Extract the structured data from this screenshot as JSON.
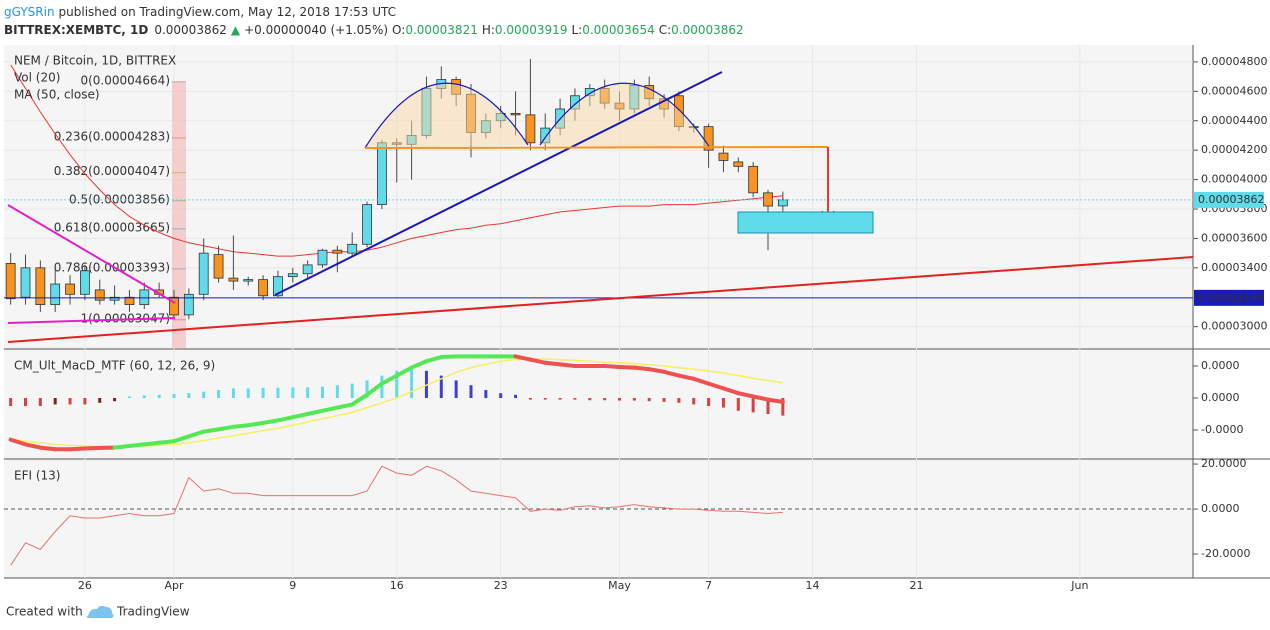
{
  "header": {
    "author": "gGYSRin",
    "published": "published on TradingView.com, May 12, 2018 17:53 UTC",
    "symbol": "BITTREX:XEMBTC, 1D",
    "price": "0.00003862",
    "change": "+0.00000040 (+1.05%)",
    "ohlc": [
      {
        "key": "O:",
        "value": "0.00003821"
      },
      {
        "key": "H:",
        "value": "0.00003919"
      },
      {
        "key": "L:",
        "value": "0.00003654"
      },
      {
        "key": "C:",
        "value": "0.00003862"
      }
    ]
  },
  "footer": {
    "created": "Created with",
    "brand": "TradingView"
  },
  "chart_data": {
    "type": "candlestick",
    "legend": [
      "NEM / Bitcoin, 1D, BITTREX",
      "Vol (20)",
      "MA (50, close)"
    ],
    "up_color": "#5fdbea",
    "down_color": "#f7931e",
    "x": [
      "Mar 21",
      "Mar 22",
      "Mar 23",
      "Mar 24",
      "Mar 25",
      "Mar 26",
      "Mar 27",
      "Mar 28",
      "Mar 29",
      "Mar 30",
      "Mar 31",
      "Apr 1",
      "Apr 2",
      "Apr 3",
      "Apr 4",
      "Apr 5",
      "Apr 6",
      "Apr 7",
      "Apr 8",
      "Apr 9",
      "Apr 10",
      "Apr 11",
      "Apr 12",
      "Apr 13",
      "Apr 14",
      "Apr 15",
      "Apr 16",
      "Apr 17",
      "Apr 18",
      "Apr 19",
      "Apr 20",
      "Apr 21",
      "Apr 22",
      "Apr 23",
      "Apr 24",
      "Apr 25",
      "Apr 26",
      "Apr 27",
      "Apr 28",
      "Apr 29",
      "Apr 30",
      "May 1",
      "May 2",
      "May 3",
      "May 4",
      "May 5",
      "May 6",
      "May 7",
      "May 8",
      "May 9",
      "May 10",
      "May 11",
      "May 12"
    ],
    "open": [
      3.43e-05,
      3.2e-05,
      3.4e-05,
      3.15e-05,
      3.29e-05,
      3.22e-05,
      3.25e-05,
      3.18e-05,
      3.2e-05,
      3.15e-05,
      3.25e-05,
      3.2e-05,
      3.08e-05,
      3.22e-05,
      3.49e-05,
      3.33e-05,
      3.31e-05,
      3.32e-05,
      3.21e-05,
      3.34e-05,
      3.36e-05,
      3.42e-05,
      3.52e-05,
      3.5e-05,
      3.56e-05,
      3.83e-05,
      4.25e-05,
      4.24e-05,
      4.3e-05,
      4.62e-05,
      4.68e-05,
      4.58e-05,
      4.32e-05,
      4.4e-05,
      4.45e-05,
      4.44e-05,
      4.25e-05,
      4.35e-05,
      4.48e-05,
      4.57e-05,
      4.62e-05,
      4.52e-05,
      4.48e-05,
      4.64e-05,
      4.55e-05,
      4.57e-05,
      4.36e-05,
      4.36e-05,
      4.18e-05,
      4.12e-05,
      4.09e-05,
      3.91e-05,
      3.821e-05
    ],
    "high": [
      3.5e-05,
      3.49e-05,
      3.45e-05,
      3.4e-05,
      3.35e-05,
      3.42e-05,
      3.32e-05,
      3.28e-05,
      3.25e-05,
      3.3e-05,
      3.3e-05,
      3.25e-05,
      3.26e-05,
      3.6e-05,
      3.55e-05,
      3.62e-05,
      3.34e-05,
      3.35e-05,
      3.38e-05,
      3.4e-05,
      3.45e-05,
      3.53e-05,
      3.55e-05,
      3.64e-05,
      3.85e-05,
      4.27e-05,
      4.28e-05,
      4.4e-05,
      4.7e-05,
      4.77e-05,
      4.7e-05,
      4.65e-05,
      4.45e-05,
      4.5e-05,
      4.6e-05,
      4.82e-05,
      4.45e-05,
      4.55e-05,
      4.62e-05,
      4.65e-05,
      4.68e-05,
      4.6e-05,
      4.68e-05,
      4.7e-05,
      4.58e-05,
      4.6e-05,
      4.38e-05,
      4.38e-05,
      4.23e-05,
      4.15e-05,
      4.12e-05,
      3.93e-05,
      3.919e-05
    ],
    "low": [
      3.15e-05,
      3.15e-05,
      3.1e-05,
      3.1e-05,
      3.15e-05,
      3.18e-05,
      3.15e-05,
      3.15e-05,
      3.1e-05,
      3.12e-05,
      3.2e-05,
      3.05e-05,
      3.05e-05,
      3.18e-05,
      3.3e-05,
      3.25e-05,
      3.28e-05,
      3.18e-05,
      3.2e-05,
      3.3e-05,
      3.32e-05,
      3.4e-05,
      3.37e-05,
      3.48e-05,
      3.54e-05,
      3.8e-05,
      3.98e-05,
      4e-05,
      4.28e-05,
      4.55e-05,
      4.5e-05,
      4.15e-05,
      4.28e-05,
      4.35e-05,
      4.3e-05,
      4.2e-05,
      4.2e-05,
      4.3e-05,
      4.4e-05,
      4.5e-05,
      4.48e-05,
      4.4e-05,
      4.45e-05,
      4.5e-05,
      4.42e-05,
      4.33e-05,
      4.32e-05,
      4.08e-05,
      4.05e-05,
      4.05e-05,
      3.88e-05,
      3.52e-05,
      3.654e-05
    ],
    "close": [
      3.19e-05,
      3.4e-05,
      3.15e-05,
      3.29e-05,
      3.22e-05,
      3.38e-05,
      3.18e-05,
      3.2e-05,
      3.15e-05,
      3.25e-05,
      3.22e-05,
      3.08e-05,
      3.22e-05,
      3.5e-05,
      3.33e-05,
      3.31e-05,
      3.32e-05,
      3.21e-05,
      3.34e-05,
      3.36e-05,
      3.42e-05,
      3.52e-05,
      3.5e-05,
      3.56e-05,
      3.83e-05,
      4.25e-05,
      4.24e-05,
      4.3e-05,
      4.62e-05,
      4.68e-05,
      4.58e-05,
      4.32e-05,
      4.4e-05,
      4.45e-05,
      4.44e-05,
      4.25e-05,
      4.35e-05,
      4.48e-05,
      4.57e-05,
      4.62e-05,
      4.52e-05,
      4.48e-05,
      4.64e-05,
      4.55e-05,
      4.48e-05,
      4.36e-05,
      4.36e-05,
      4.2e-05,
      4.13e-05,
      4.09e-05,
      3.91e-05,
      3.82e-05,
      3.862e-05
    ],
    "ma": {
      "color": "#e53935",
      "values": [
        4.78e-05,
        4.62e-05,
        4.46e-05,
        4.31e-05,
        4.17e-05,
        4.04e-05,
        3.93e-05,
        3.83e-05,
        3.75e-05,
        3.69e-05,
        3.64e-05,
        3.6e-05,
        3.57e-05,
        3.55e-05,
        3.53e-05,
        3.51e-05,
        3.5e-05,
        3.49e-05,
        3.48e-05,
        3.48e-05,
        3.49e-05,
        3.5e-05,
        3.51e-05,
        3.51e-05,
        3.52e-05,
        3.54e-05,
        3.57e-05,
        3.6e-05,
        3.62e-05,
        3.64e-05,
        3.66e-05,
        3.67e-05,
        3.69e-05,
        3.7e-05,
        3.72e-05,
        3.74e-05,
        3.76e-05,
        3.78e-05,
        3.79e-05,
        3.8e-05,
        3.81e-05,
        3.82e-05,
        3.82e-05,
        3.82e-05,
        3.83e-05,
        3.83e-05,
        3.83e-05,
        3.84e-05,
        3.85e-05,
        3.86e-05,
        3.87e-05,
        3.88e-05,
        3.89e-05
      ]
    },
    "ylim": [
      2.855e-05,
      4.915e-05
    ],
    "yticks": [
      {
        "value": 4.8e-05,
        "label": "0.00004800"
      },
      {
        "value": 4.6e-05,
        "label": "0.00004600"
      },
      {
        "value": 4.4e-05,
        "label": "0.00004400"
      },
      {
        "value": 4.2e-05,
        "label": "0.00004200"
      },
      {
        "value": 4e-05,
        "label": "0.00004000"
      },
      {
        "value": 3.8e-05,
        "label": "0.00003800"
      },
      {
        "value": 3.6e-05,
        "label": "0.00003600"
      },
      {
        "value": 3.4e-05,
        "label": "0.00003400"
      },
      {
        "value": 3e-05,
        "label": "0.00003000"
      }
    ],
    "levels": [
      {
        "value": 3.862e-05,
        "label": "0.00003862",
        "color": "#5fdbea",
        "text_color": "#000"
      },
      {
        "value": 3.196e-05,
        "label": "0.00003196",
        "color": "#1a1ab8",
        "text_color": "#fff"
      }
    ],
    "fib": [
      {
        "label": "0(0.00004664)",
        "value": 4.664e-05,
        "color": "#9e9e9e"
      },
      {
        "label": "0.236(0.00004283)",
        "value": 4.283e-05,
        "color": "#e05050"
      },
      {
        "label": "0.382(0.00004047)",
        "value": 4.047e-05,
        "color": "#9aae1a"
      },
      {
        "label": "0.5(0.00003856)",
        "value": 3.856e-05,
        "color": "#4caf50"
      },
      {
        "label": "0.618(0.00003665)",
        "value": 3.665e-05,
        "color": "#26a69a"
      },
      {
        "label": "0.786(0.00003393)",
        "value": 3.393e-05,
        "color": "#3d8fd8"
      },
      {
        "label": "1(0.00003047)",
        "value": 3.047e-05,
        "color": "#9c4aa8"
      }
    ],
    "xticks": [
      {
        "value": "Mar 26",
        "label": "26"
      },
      {
        "value": "Apr 1",
        "label": "Apr"
      },
      {
        "value": "Apr 9",
        "label": "9"
      },
      {
        "value": "Apr 16",
        "label": "16"
      },
      {
        "value": "Apr 23",
        "label": "23"
      },
      {
        "value": "May 1",
        "label": "May"
      },
      {
        "value": "May 7",
        "label": "7"
      },
      {
        "value": "May 14",
        "label": "14"
      },
      {
        "value": "May 21",
        "label": "21"
      },
      {
        "value": "Jun 1",
        "label": "Jun"
      }
    ],
    "macd": {
      "title": "CM_Ult_MacD_MTF (60, 12, 26, 9)",
      "ylim": [
        -1.875e-07,
        1.5e-07
      ],
      "yticks": [
        {
          "value": 1e-07,
          "label": "0.0000"
        },
        {
          "value": 0,
          "label": "0.0000"
        },
        {
          "value": -1e-07,
          "label": "-0.0000"
        }
      ],
      "up_color": "#55e855",
      "down_color": "#f05050",
      "signal_color": "#f5f060",
      "macd": [
        -1.3e-07,
        -1.45e-07,
        -1.55e-07,
        -1.6e-07,
        -1.6e-07,
        -1.58e-07,
        -1.56e-07,
        -1.55e-07,
        -1.5e-07,
        -1.45e-07,
        -1.4e-07,
        -1.35e-07,
        -1.2e-07,
        -1.05e-07,
        -9.8e-08,
        -9e-08,
        -8.5e-08,
        -7.8e-08,
        -7e-08,
        -6e-08,
        -5e-08,
        -4e-08,
        -3e-08,
        -2e-08,
        1e-08,
        4.5e-08,
        7e-08,
        9.5e-08,
        1.15e-07,
        1.28e-07,
        1.3e-07,
        1.3e-07,
        1.3e-07,
        1.3e-07,
        1.3e-07,
        1.2e-07,
        1.1e-07,
        1.05e-07,
        1e-07,
        1e-07,
        1e-07,
        9.7e-08,
        9.5e-08,
        9e-08,
        8.2e-08,
        7e-08,
        6e-08,
        4.5e-08,
        3e-08,
        1.5e-08,
        5e-09,
        -5e-09,
        -1.2e-08
      ],
      "signal": [
        -1.3e-07,
        -1.35e-07,
        -1.4e-07,
        -1.45e-07,
        -1.48e-07,
        -1.5e-07,
        -1.52e-07,
        -1.53e-07,
        -1.52e-07,
        -1.5e-07,
        -1.48e-07,
        -1.45e-07,
        -1.4e-07,
        -1.33e-07,
        -1.25e-07,
        -1.18e-07,
        -1.1e-07,
        -1.02e-07,
        -9.5e-08,
        -8.5e-08,
        -7.5e-08,
        -6.5e-08,
        -5.5e-08,
        -4.5e-08,
        -3e-08,
        -1.5e-08,
        0,
        2e-08,
        4e-08,
        6e-08,
        8e-08,
        9.5e-08,
        1.05e-07,
        1.15e-07,
        1.2e-07,
        1.22e-07,
        1.22e-07,
        1.2e-07,
        1.18e-07,
        1.15e-07,
        1.12e-07,
        1.1e-07,
        1.07e-07,
        1.04e-07,
        1e-07,
        9.5e-08,
        9e-08,
        8.4e-08,
        7.8e-08,
        7e-08,
        6.2e-08,
        5.5e-08,
        4.7e-08
      ],
      "hist": [
        -2.5e-08,
        -2.5e-08,
        -2.5e-08,
        -2e-08,
        -2e-08,
        -2e-08,
        -1.5e-08,
        -1e-08,
        5e-09,
        8e-09,
        1e-08,
        1.2e-08,
        1.5e-08,
        2e-08,
        2.5e-08,
        3e-08,
        3e-08,
        3.2e-08,
        3.2e-08,
        3.3e-08,
        3.3e-08,
        3.5e-08,
        4e-08,
        4.5e-08,
        5.5e-08,
        7e-08,
        8.5e-08,
        9e-08,
        8.5e-08,
        7e-08,
        5.5e-08,
        4e-08,
        2.5e-08,
        1.5e-08,
        1e-08,
        -5e-09,
        -5e-09,
        -5e-09,
        -5e-09,
        -7e-09,
        -7e-09,
        -8e-09,
        -8e-09,
        -1e-08,
        -1.2e-08,
        -1.5e-08,
        -2e-08,
        -2.5e-08,
        -3e-08,
        -4e-08,
        -4.5e-08,
        -5e-08,
        -5.5e-08
      ]
    },
    "efi": {
      "title": "EFI (13)",
      "color": "#e57373",
      "ylim": [
        -30.2,
        21.8
      ],
      "yticks": [
        {
          "value": 20,
          "label": "20.0000"
        },
        {
          "value": 0,
          "label": "0.0000"
        },
        {
          "value": -20,
          "label": "-20.0000"
        }
      ],
      "values": [
        -25,
        -15,
        -18,
        -10,
        -3,
        -4,
        -4,
        -3,
        -2,
        -3,
        -3,
        -2,
        14,
        8,
        9,
        7,
        7,
        6,
        6,
        6,
        6,
        6,
        6,
        6,
        8,
        19,
        16,
        15,
        19,
        17,
        13,
        8,
        7,
        6,
        5,
        -1,
        0,
        -0.5,
        1,
        1.5,
        0.5,
        1,
        2,
        1,
        0.5,
        0,
        0,
        -0.5,
        -1,
        -1,
        -1.5,
        -2,
        -1.5
      ]
    }
  }
}
